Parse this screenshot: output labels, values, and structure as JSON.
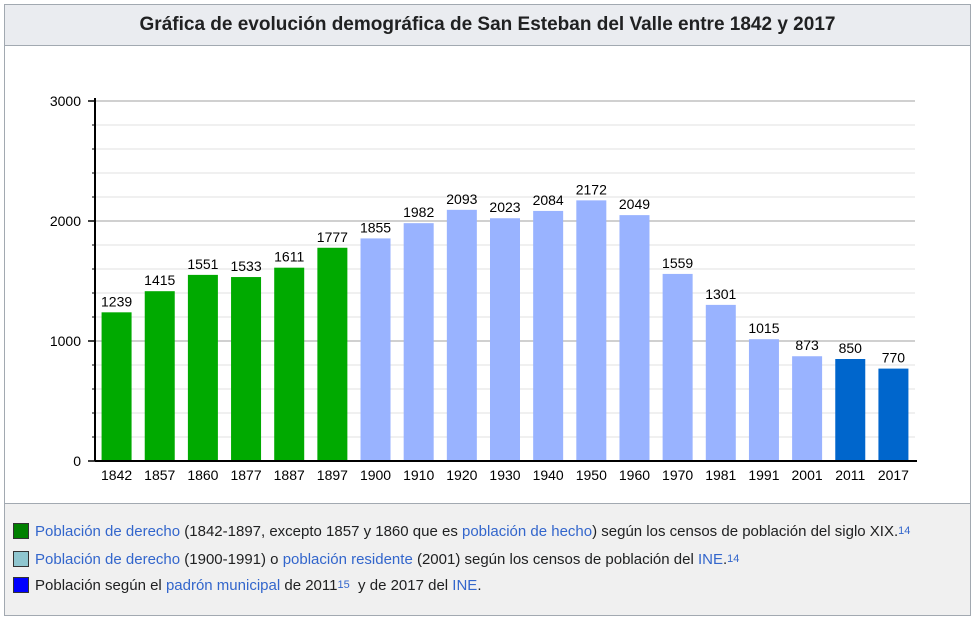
{
  "title": "Gráfica de evolución demográfica de San Esteban del Valle entre 1842 y 2017",
  "chart_data": {
    "type": "bar",
    "title": "Gráfica de evolución demográfica de San Esteban del Valle entre 1842 y 2017",
    "xlabel": "",
    "ylabel": "",
    "ylim": [
      0,
      3000
    ],
    "yticks": [
      0,
      1000,
      2000,
      3000
    ],
    "grid": true,
    "categories": [
      "1842",
      "1857",
      "1860",
      "1877",
      "1887",
      "1897",
      "1900",
      "1910",
      "1920",
      "1930",
      "1940",
      "1950",
      "1960",
      "1970",
      "1981",
      "1991",
      "2001",
      "2011",
      "2017"
    ],
    "values": [
      1239,
      1415,
      1551,
      1533,
      1611,
      1777,
      1855,
      1982,
      2093,
      2023,
      2084,
      2172,
      2049,
      1559,
      1301,
      1015,
      873,
      850,
      770
    ],
    "colors": [
      "#00aa00",
      "#00aa00",
      "#00aa00",
      "#00aa00",
      "#00aa00",
      "#00aa00",
      "#99b3ff",
      "#99b3ff",
      "#99b3ff",
      "#99b3ff",
      "#99b3ff",
      "#99b3ff",
      "#99b3ff",
      "#99b3ff",
      "#99b3ff",
      "#99b3ff",
      "#99b3ff",
      "#0066cc",
      "#0066cc"
    ]
  },
  "legend": [
    {
      "swatch_color": "#008000",
      "parts": [
        {
          "text": "Población de derecho",
          "link": true
        },
        {
          "text": " (1842-1897, excepto 1857 y 1860 que es ",
          "link": false
        },
        {
          "text": "población de hecho",
          "link": true
        },
        {
          "text": ") según los censos de población del siglo XIX.",
          "link": false
        }
      ],
      "sup": "14"
    },
    {
      "swatch_color": "#8fc6cf",
      "parts": [
        {
          "text": "Población de derecho",
          "link": true
        },
        {
          "text": " (1900-1991) o ",
          "link": false
        },
        {
          "text": "población residente",
          "link": true
        },
        {
          "text": " (2001) según los censos de población del ",
          "link": false
        },
        {
          "text": "INE",
          "link": true
        },
        {
          "text": ".",
          "link": false
        }
      ],
      "sup": "14"
    },
    {
      "swatch_color": "#0000ff",
      "parts": [
        {
          "text": "Población según el ",
          "link": false
        },
        {
          "text": "padrón municipal",
          "link": true
        },
        {
          "text": " de 2011",
          "link": false
        }
      ],
      "sup": "15",
      "parts_after": [
        {
          "text": "  y de 2017 del ",
          "link": false
        },
        {
          "text": "INE",
          "link": true
        },
        {
          "text": ".",
          "link": false
        }
      ]
    }
  ]
}
